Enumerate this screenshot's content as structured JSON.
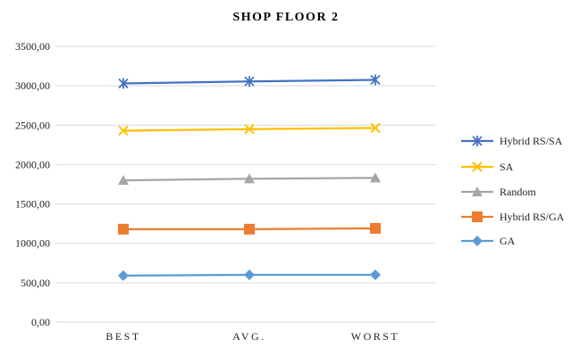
{
  "chart_data": {
    "type": "line",
    "title": "SHOP FLOOR 2",
    "xlabel": "",
    "ylabel": "",
    "categories": [
      "BEST",
      "AVG.",
      "WORST"
    ],
    "ylim": [
      0,
      3500
    ],
    "yticks": [
      "0,00",
      "500,00",
      "1000,00",
      "1500,00",
      "2000,00",
      "2500,00",
      "3000,00",
      "3500,00"
    ],
    "grid": true,
    "legend_position": "right",
    "series": [
      {
        "name": "Hybrid RS/SA",
        "values": [
          3030,
          3055,
          3075
        ],
        "color": "#4472C4",
        "marker": "star"
      },
      {
        "name": "SA",
        "values": [
          2430,
          2450,
          2465
        ],
        "color": "#FFC000",
        "marker": "x"
      },
      {
        "name": "Random",
        "values": [
          1800,
          1820,
          1830
        ],
        "color": "#A5A5A5",
        "marker": "triangle"
      },
      {
        "name": "Hybrid RS/GA",
        "values": [
          1180,
          1180,
          1190
        ],
        "color": "#ED7D31",
        "marker": "square"
      },
      {
        "name": "GA",
        "values": [
          590,
          600,
          600
        ],
        "color": "#5B9BD5",
        "marker": "diamond"
      }
    ]
  }
}
